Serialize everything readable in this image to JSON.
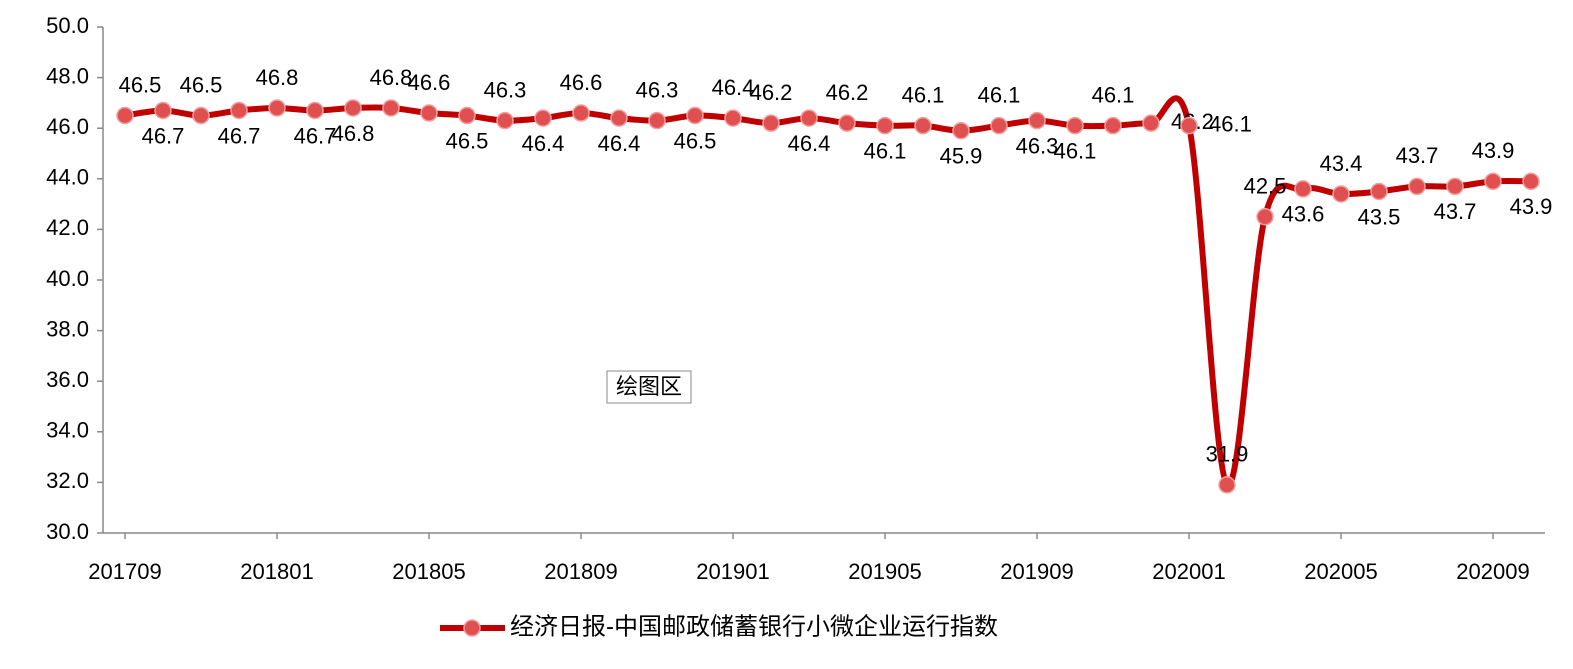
{
  "chart_data": {
    "type": "line",
    "categories": [
      "201709",
      null,
      null,
      null,
      "201801",
      null,
      null,
      null,
      "201805",
      null,
      null,
      null,
      "201809",
      null,
      null,
      null,
      "201901",
      null,
      null,
      null,
      "201905",
      null,
      null,
      null,
      "201909",
      null,
      null,
      null,
      "202001",
      null,
      null,
      null,
      "202005",
      null,
      null,
      null,
      "202009",
      null
    ],
    "series": [
      {
        "name": "经济日报-中国邮政储蓄银行小微企业运行指数",
        "color": "#c00000",
        "marker_color": "#e05050",
        "values": [
          46.5,
          46.7,
          46.5,
          46.7,
          46.8,
          46.7,
          46.8,
          46.8,
          46.6,
          46.5,
          46.3,
          46.4,
          46.6,
          46.4,
          46.3,
          46.5,
          46.4,
          46.2,
          46.4,
          46.2,
          46.1,
          46.1,
          45.9,
          46.1,
          46.3,
          46.1,
          46.1,
          46.2,
          46.1,
          31.9,
          42.5,
          43.6,
          43.4,
          43.5,
          43.7,
          43.7,
          43.9,
          43.9
        ]
      }
    ],
    "ylim": [
      30,
      50
    ],
    "yticks": [
      {
        "value": 30,
        "label": "30.0"
      },
      {
        "value": 32,
        "label": "32.0"
      },
      {
        "value": 34,
        "label": "34.0"
      },
      {
        "value": 36,
        "label": "36.0"
      },
      {
        "value": 38,
        "label": "38.0"
      },
      {
        "value": 40,
        "label": "40.0"
      },
      {
        "value": 42,
        "label": "42.0"
      },
      {
        "value": 44,
        "label": "44.0"
      },
      {
        "value": 46,
        "label": "46.0"
      },
      {
        "value": 48,
        "label": "48.0"
      },
      {
        "value": 50,
        "label": "50.0"
      }
    ],
    "smooth": true,
    "legend": "bottom",
    "tooltip": "绘图区"
  }
}
